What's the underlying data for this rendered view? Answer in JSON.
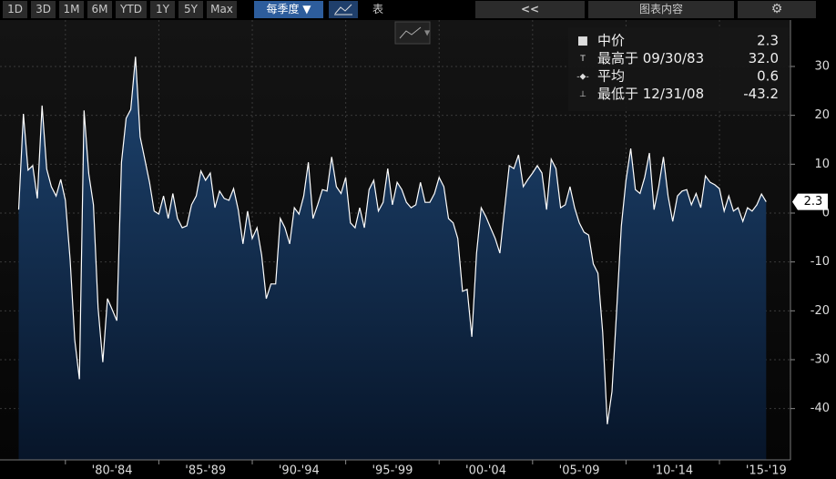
{
  "toolbar": {
    "ranges": [
      "1D",
      "3D",
      "1M",
      "6M",
      "YTD",
      "1Y",
      "5Y",
      "Max"
    ],
    "frequency": "每季度 ▼",
    "table": "表",
    "collapse": "<<",
    "content": "图表内容",
    "settings": "⚙"
  },
  "chart_data": {
    "type": "area",
    "color": "#ffffff",
    "xlim": [
      1976.5,
      2018.8
    ],
    "ylim": [
      -50.5,
      39.5
    ],
    "yticks": [
      30,
      20,
      10,
      0,
      -10,
      -20,
      -30,
      -40
    ],
    "xgrid": [
      1980,
      1985,
      1990,
      1995,
      2000,
      2005,
      2010,
      2015
    ],
    "xticks": [
      {
        "value": 1982.5,
        "label": "'80-'84"
      },
      {
        "value": 1987.5,
        "label": "'85-'89"
      },
      {
        "value": 1992.5,
        "label": "'90-'94"
      },
      {
        "value": 1997.5,
        "label": "'95-'99"
      },
      {
        "value": 2002.5,
        "label": "'00-'04"
      },
      {
        "value": 2007.5,
        "label": "'05-'09"
      },
      {
        "value": 2012.5,
        "label": "'10-'14"
      },
      {
        "value": 2017.5,
        "label": "'15-'19"
      }
    ],
    "grid": true,
    "legend": [
      {
        "label": "中价",
        "value": "2.3"
      },
      {
        "label": "最高于 09/30/83",
        "value": "32.0"
      },
      {
        "label": "平均",
        "value": "0.6"
      },
      {
        "label": "最低于 12/31/08",
        "value": "-43.2"
      }
    ],
    "x": [
      1977.5,
      1977.75,
      1978,
      1978.25,
      1978.5,
      1978.75,
      1979,
      1979.25,
      1979.5,
      1979.75,
      1980,
      1980.25,
      1980.5,
      1980.75,
      1981,
      1981.25,
      1981.5,
      1981.75,
      1982,
      1982.25,
      1982.5,
      1982.75,
      1983,
      1983.25,
      1983.5,
      1983.75,
      1984,
      1984.25,
      1984.5,
      1984.75,
      1985,
      1985.25,
      1985.5,
      1985.75,
      1986,
      1986.25,
      1986.5,
      1986.75,
      1987,
      1987.25,
      1987.5,
      1987.75,
      1988,
      1988.25,
      1988.5,
      1988.75,
      1989,
      1989.25,
      1989.5,
      1989.75,
      1990,
      1990.25,
      1990.5,
      1990.75,
      1991,
      1991.25,
      1991.5,
      1991.75,
      1992,
      1992.25,
      1992.5,
      1992.75,
      1993,
      1993.25,
      1993.5,
      1993.75,
      1994,
      1994.25,
      1994.5,
      1994.75,
      1995,
      1995.25,
      1995.5,
      1995.75,
      1996,
      1996.25,
      1996.5,
      1996.75,
      1997,
      1997.25,
      1997.5,
      1997.75,
      1998,
      1998.25,
      1998.5,
      1998.75,
      1999,
      1999.25,
      1999.5,
      1999.75,
      2000,
      2000.25,
      2000.5,
      2000.75,
      2001,
      2001.25,
      2001.5,
      2001.75,
      2002,
      2002.25,
      2002.5,
      2002.75,
      2003,
      2003.25,
      2003.5,
      2003.75,
      2004,
      2004.25,
      2004.5,
      2004.75,
      2005,
      2005.25,
      2005.5,
      2005.75,
      2006,
      2006.25,
      2006.5,
      2006.75,
      2007,
      2007.25,
      2007.5,
      2007.75,
      2008,
      2008.25,
      2008.5,
      2008.75,
      2009,
      2009.25,
      2009.5,
      2009.75,
      2010,
      2010.25,
      2010.5,
      2010.75,
      2011,
      2011.25,
      2011.5,
      2011.75,
      2012,
      2012.25,
      2012.5,
      2012.75,
      2013,
      2013.25,
      2013.5,
      2013.75,
      2014,
      2014.25,
      2014.5,
      2014.75,
      2015,
      2015.25,
      2015.5,
      2015.75,
      2016,
      2016.25,
      2016.5,
      2016.75,
      2017,
      2017.25,
      2017.5
    ],
    "values": [
      0.7,
      20.3,
      8.8,
      9.7,
      3,
      22,
      9,
      5.4,
      3.5,
      6.9,
      2.6,
      -9.5,
      -26,
      -34,
      21,
      8,
      1.7,
      -19.4,
      -30.5,
      -17.5,
      -19.7,
      -22,
      10.4,
      19.4,
      21.2,
      32.0,
      15.6,
      11,
      6.3,
      0.4,
      -0.2,
      3.5,
      -1.1,
      4,
      -1.1,
      -3,
      -2.6,
      1.7,
      3.5,
      8.6,
      6.7,
      8.2,
      1.1,
      4.5,
      3,
      2.6,
      5,
      0.7,
      -6.3,
      0.4,
      -5.2,
      -3,
      -8.6,
      -17.5,
      -14.5,
      -14.5,
      -1.1,
      -3,
      -6.3,
      1.1,
      -0.2,
      3.5,
      10.4,
      -1.1,
      1.7,
      4.8,
      4.5,
      11.5,
      5.4,
      4,
      7.3,
      -2,
      -3,
      1.1,
      -3,
      4.8,
      6.7,
      0.4,
      2.2,
      9.1,
      1.7,
      6.3,
      4.8,
      2.2,
      1.1,
      1.7,
      6.3,
      2.2,
      2.2,
      4,
      7.3,
      5.4,
      -1.1,
      -2,
      -5.2,
      -16,
      -15.6,
      -25.3,
      -8.2,
      1.1,
      -0.7,
      -3,
      -5.2,
      -8.2,
      0.7,
      9.7,
      9.1,
      11.9,
      5.4,
      6.9,
      8.2,
      9.7,
      8.2,
      0.7,
      11,
      9.1,
      1.1,
      1.7,
      5.4,
      1.1,
      -2,
      -3.9,
      -4.5,
      -10.4,
      -12.3,
      -24.4,
      -43.2,
      -36.5,
      -19.7,
      -2.6,
      6.7,
      13.2,
      4.8,
      4,
      7.3,
      12.3,
      0.7,
      5.4,
      11.5,
      3.5,
      -1.7,
      3.5,
      4.5,
      4.8,
      1.7,
      4,
      1.1,
      7.6,
      6.3,
      5.8,
      5,
      0.4,
      3.5,
      0.4,
      1.1,
      -1.7,
      1.1,
      0.4,
      1.7,
      3.9,
      2.3
    ]
  }
}
